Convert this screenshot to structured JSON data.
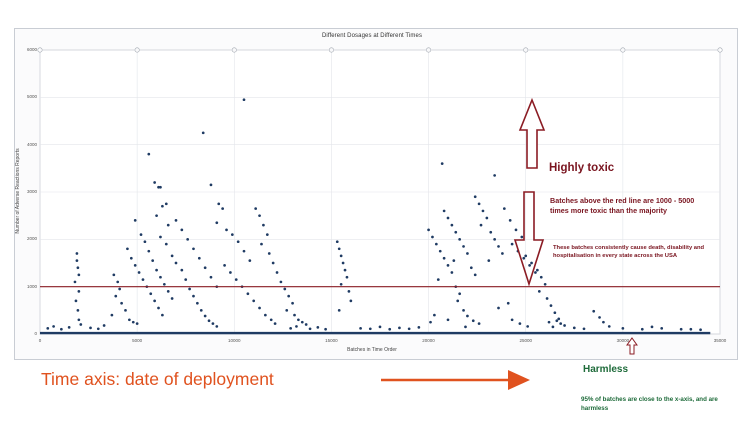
{
  "chart_data": {
    "type": "scatter",
    "title": "Different Dosages at Different Times",
    "xlabel": "Batches in Time Order",
    "ylabel": "Number of Adverse Reactions Reports",
    "xlim": [
      0,
      35000
    ],
    "ylim": [
      0,
      6000
    ],
    "x_ticks": [
      "0",
      "5000",
      "10000",
      "15000",
      "20000",
      "25000",
      "30000",
      "35000"
    ],
    "y_ticks": [
      "0",
      "1000",
      "2000",
      "3000",
      "4000",
      "5000",
      "6000"
    ],
    "threshold": 1000,
    "grid": true,
    "colors": {
      "points": "#1f3b63",
      "threshold_line": "#8b1c24",
      "toxic_text": "#7a1520",
      "harmless_text": "#1e6b3a",
      "time_text": "#e0521f",
      "time_arrow": "#e0521f"
    },
    "points": [
      [
        1900,
        1700
      ],
      [
        1900,
        1550
      ],
      [
        1950,
        1400
      ],
      [
        2000,
        1250
      ],
      [
        2000,
        900
      ],
      [
        1850,
        700
      ],
      [
        1950,
        500
      ],
      [
        2000,
        300
      ],
      [
        2100,
        200
      ],
      [
        1800,
        1100
      ],
      [
        3800,
        1250
      ],
      [
        4000,
        1100
      ],
      [
        4100,
        950
      ],
      [
        3900,
        800
      ],
      [
        4200,
        650
      ],
      [
        4400,
        500
      ],
      [
        3700,
        400
      ],
      [
        4600,
        300
      ],
      [
        4800,
        250
      ],
      [
        5000,
        220
      ],
      [
        4500,
        1800
      ],
      [
        4700,
        1600
      ],
      [
        4900,
        1450
      ],
      [
        5100,
        1300
      ],
      [
        5300,
        1150
      ],
      [
        5500,
        1000
      ],
      [
        5700,
        850
      ],
      [
        5900,
        700
      ],
      [
        6100,
        550
      ],
      [
        6300,
        400
      ],
      [
        4900,
        2400
      ],
      [
        5200,
        2100
      ],
      [
        5400,
        1950
      ],
      [
        5600,
        1750
      ],
      [
        5800,
        1550
      ],
      [
        6000,
        1350
      ],
      [
        6200,
        1200
      ],
      [
        6400,
        1050
      ],
      [
        6600,
        900
      ],
      [
        6800,
        750
      ],
      [
        5600,
        3800
      ],
      [
        5900,
        3200
      ],
      [
        6100,
        3100
      ],
      [
        6300,
        2700
      ],
      [
        6000,
        2500
      ],
      [
        6600,
        2300
      ],
      [
        6200,
        2050
      ],
      [
        6500,
        1900
      ],
      [
        6800,
        1650
      ],
      [
        7000,
        1500
      ],
      [
        6200,
        3100
      ],
      [
        6500,
        2750
      ],
      [
        7000,
        2400
      ],
      [
        7300,
        2200
      ],
      [
        7600,
        2000
      ],
      [
        7900,
        1800
      ],
      [
        8200,
        1600
      ],
      [
        8500,
        1400
      ],
      [
        8800,
        1200
      ],
      [
        9100,
        1000
      ],
      [
        7300,
        1350
      ],
      [
        7500,
        1150
      ],
      [
        7700,
        950
      ],
      [
        7900,
        800
      ],
      [
        8100,
        650
      ],
      [
        8300,
        500
      ],
      [
        8500,
        380
      ],
      [
        8700,
        280
      ],
      [
        8900,
        220
      ],
      [
        9100,
        160
      ],
      [
        8400,
        4250
      ],
      [
        8800,
        3150
      ],
      [
        9200,
        2750
      ],
      [
        9400,
        2650
      ],
      [
        9100,
        2350
      ],
      [
        9600,
        2200
      ],
      [
        9900,
        2100
      ],
      [
        10200,
        1950
      ],
      [
        10500,
        1750
      ],
      [
        10800,
        1550
      ],
      [
        9500,
        1450
      ],
      [
        9800,
        1300
      ],
      [
        10100,
        1150
      ],
      [
        10400,
        1000
      ],
      [
        10700,
        850
      ],
      [
        11000,
        700
      ],
      [
        11300,
        550
      ],
      [
        11600,
        400
      ],
      [
        11900,
        300
      ],
      [
        12100,
        220
      ],
      [
        10500,
        4950
      ],
      [
        11100,
        2650
      ],
      [
        11300,
        2500
      ],
      [
        11500,
        2300
      ],
      [
        11700,
        2100
      ],
      [
        11400,
        1900
      ],
      [
        11800,
        1700
      ],
      [
        12000,
        1500
      ],
      [
        12200,
        1300
      ],
      [
        12400,
        1100
      ],
      [
        12600,
        950
      ],
      [
        12800,
        800
      ],
      [
        13000,
        650
      ],
      [
        12700,
        500
      ],
      [
        13100,
        400
      ],
      [
        13300,
        300
      ],
      [
        13500,
        250
      ],
      [
        13700,
        200
      ],
      [
        13200,
        160
      ],
      [
        12900,
        120
      ],
      [
        15300,
        1950
      ],
      [
        15400,
        1800
      ],
      [
        15500,
        1650
      ],
      [
        15600,
        1500
      ],
      [
        15700,
        1350
      ],
      [
        15800,
        1200
      ],
      [
        15500,
        1050
      ],
      [
        15900,
        900
      ],
      [
        16000,
        700
      ],
      [
        15400,
        500
      ],
      [
        20000,
        2200
      ],
      [
        20200,
        2050
      ],
      [
        20400,
        1900
      ],
      [
        20600,
        1750
      ],
      [
        20800,
        1600
      ],
      [
        21000,
        1450
      ],
      [
        21200,
        1300
      ],
      [
        20500,
        1150
      ],
      [
        21400,
        1000
      ],
      [
        21600,
        850
      ],
      [
        20800,
        2600
      ],
      [
        21000,
        2450
      ],
      [
        21200,
        2300
      ],
      [
        21400,
        2150
      ],
      [
        21600,
        2000
      ],
      [
        21800,
        1850
      ],
      [
        22000,
        1700
      ],
      [
        21300,
        1550
      ],
      [
        22200,
        1400
      ],
      [
        22400,
        1250
      ],
      [
        20700,
        3600
      ],
      [
        21500,
        700
      ],
      [
        21800,
        500
      ],
      [
        22000,
        380
      ],
      [
        22300,
        280
      ],
      [
        22600,
        220
      ],
      [
        21000,
        300
      ],
      [
        20300,
        400
      ],
      [
        20100,
        250
      ],
      [
        21900,
        150
      ],
      [
        22400,
        2900
      ],
      [
        22600,
        2750
      ],
      [
        22800,
        2600
      ],
      [
        23000,
        2450
      ],
      [
        22700,
        2300
      ],
      [
        23200,
        2150
      ],
      [
        23400,
        2000
      ],
      [
        23600,
        1850
      ],
      [
        23800,
        1700
      ],
      [
        23100,
        1550
      ],
      [
        23400,
        3350
      ],
      [
        23900,
        2650
      ],
      [
        24200,
        2400
      ],
      [
        24500,
        2200
      ],
      [
        24800,
        2050
      ],
      [
        24300,
        1900
      ],
      [
        24600,
        1750
      ],
      [
        24900,
        1600
      ],
      [
        25200,
        1450
      ],
      [
        25500,
        1300
      ],
      [
        25000,
        1650
      ],
      [
        25300,
        1500
      ],
      [
        25600,
        1350
      ],
      [
        25800,
        1200
      ],
      [
        26000,
        1050
      ],
      [
        25700,
        900
      ],
      [
        26100,
        750
      ],
      [
        26300,
        600
      ],
      [
        26500,
        450
      ],
      [
        26700,
        320
      ],
      [
        26600,
        280
      ],
      [
        26800,
        220
      ],
      [
        27000,
        180
      ],
      [
        26400,
        150
      ],
      [
        26200,
        250
      ],
      [
        24100,
        650
      ],
      [
        23600,
        550
      ],
      [
        24300,
        300
      ],
      [
        24700,
        220
      ],
      [
        25100,
        160
      ],
      [
        28500,
        480
      ],
      [
        28800,
        350
      ],
      [
        29000,
        250
      ],
      [
        29300,
        160
      ],
      [
        31500,
        150
      ],
      [
        32000,
        120
      ],
      [
        33500,
        100
      ],
      [
        34000,
        90
      ],
      [
        30000,
        120
      ],
      [
        31000,
        100
      ],
      [
        400,
        120
      ],
      [
        700,
        160
      ],
      [
        1100,
        100
      ],
      [
        1500,
        140
      ],
      [
        2600,
        130
      ],
      [
        3000,
        110
      ],
      [
        3300,
        180
      ],
      [
        13900,
        110
      ],
      [
        14300,
        140
      ],
      [
        14700,
        100
      ],
      [
        16500,
        120
      ],
      [
        17000,
        110
      ],
      [
        17500,
        150
      ],
      [
        18000,
        100
      ],
      [
        18500,
        130
      ],
      [
        19000,
        110
      ],
      [
        19500,
        140
      ],
      [
        27500,
        130
      ],
      [
        28000,
        110
      ],
      [
        33000,
        100
      ]
    ],
    "annotations": {
      "highly_toxic": "Highly toxic",
      "above_line": "Batches above the red line are 1000 - 5000 times more toxic than the majority",
      "batches_note": "These batches consistently cause death, disability and hospitalisation in every state across the USA",
      "harmless": "Harmless",
      "pct_note": "95% of batches are close to the x-axis, and are harmless",
      "time_axis": "Time axis: date of deployment"
    }
  }
}
